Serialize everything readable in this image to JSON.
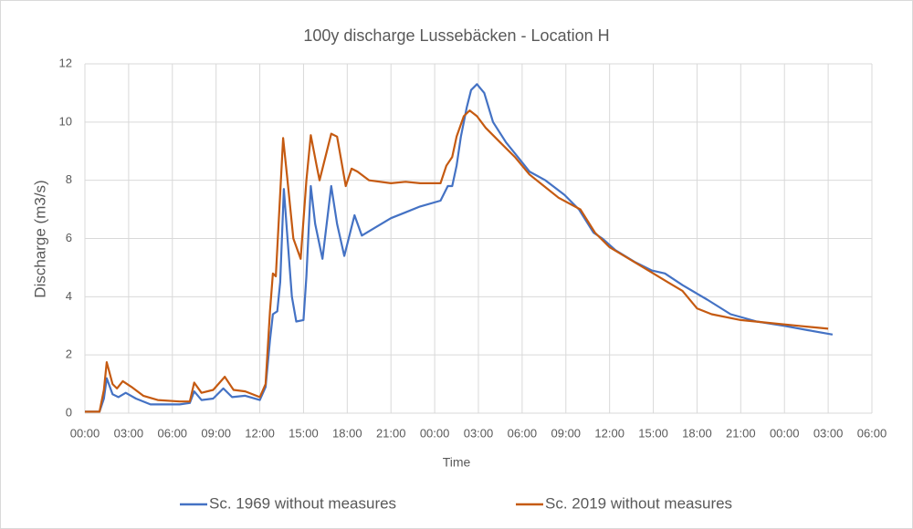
{
  "chart_data": {
    "type": "line",
    "title": "100y discharge Lussebäcken - Location H",
    "x_label": "Time",
    "y_label": "Discharge (m3/s)",
    "xlim": [
      0,
      54
    ],
    "xticks": [
      {
        "value": 0,
        "label": "00:00"
      },
      {
        "value": 3,
        "label": "03:00"
      },
      {
        "value": 6,
        "label": "06:00"
      },
      {
        "value": 9,
        "label": "09:00"
      },
      {
        "value": 12,
        "label": "12:00"
      },
      {
        "value": 15,
        "label": "15:00"
      },
      {
        "value": 18,
        "label": "18:00"
      },
      {
        "value": 21,
        "label": "21:00"
      },
      {
        "value": 24,
        "label": "00:00"
      },
      {
        "value": 27,
        "label": "03:00"
      },
      {
        "value": 30,
        "label": "06:00"
      },
      {
        "value": 33,
        "label": "09:00"
      },
      {
        "value": 36,
        "label": "12:00"
      },
      {
        "value": 39,
        "label": "15:00"
      },
      {
        "value": 42,
        "label": "18:00"
      },
      {
        "value": 45,
        "label": "21:00"
      },
      {
        "value": 48,
        "label": "00:00"
      },
      {
        "value": 51,
        "label": "03:00"
      },
      {
        "value": 54,
        "label": "06:00"
      }
    ],
    "ylim": [
      0,
      12
    ],
    "yticks": [
      0,
      2,
      4,
      6,
      8,
      10,
      12
    ],
    "grid": true,
    "legend": "bottom",
    "series": [
      {
        "name": "Sc. 1969 without measures",
        "color": "#4472c4",
        "x": [
          0,
          1.0,
          1.3,
          1.5,
          1.9,
          2.3,
          2.8,
          3.5,
          4.5,
          6.5,
          7.2,
          7.5,
          8.0,
          8.8,
          9.5,
          10.1,
          11,
          12,
          12.4,
          12.7,
          12.9,
          13.2,
          13.4,
          13.65,
          13.9,
          14.2,
          14.5,
          15.0,
          15.2,
          15.5,
          15.8,
          16.3,
          16.9,
          17.3,
          17.8,
          18.1,
          18.5,
          19.0,
          20,
          21,
          22,
          23,
          24.4,
          24.9,
          25.2,
          25.5,
          25.8,
          26.2,
          26.5,
          26.9,
          27.4,
          28.0,
          28.9,
          29.7,
          30.5,
          31.6,
          32.9,
          33.9,
          34.9,
          35.5,
          36.4,
          37.7,
          38.9,
          39.8,
          41.0,
          42.7,
          44.3,
          46.1,
          48.0,
          49.6,
          51.3
        ],
        "values": [
          0.05,
          0.05,
          0.5,
          1.2,
          0.65,
          0.55,
          0.7,
          0.5,
          0.3,
          0.3,
          0.35,
          0.75,
          0.45,
          0.5,
          0.85,
          0.55,
          0.6,
          0.45,
          0.9,
          2.5,
          3.4,
          3.5,
          4.5,
          7.7,
          6.0,
          4.0,
          3.15,
          3.2,
          4.7,
          7.8,
          6.5,
          5.3,
          7.8,
          6.5,
          5.4,
          6.0,
          6.8,
          6.1,
          6.4,
          6.7,
          6.9,
          7.1,
          7.3,
          7.8,
          7.8,
          8.5,
          9.5,
          10.5,
          11.1,
          11.3,
          11.0,
          10.0,
          9.3,
          8.8,
          8.3,
          8.0,
          7.5,
          7.0,
          6.2,
          6.0,
          5.6,
          5.2,
          4.9,
          4.8,
          4.4,
          3.9,
          3.4,
          3.15,
          3.0,
          2.85,
          2.7
        ]
      },
      {
        "name": "Sc. 2019 without measures",
        "color": "#c55a11",
        "x": [
          0,
          1.0,
          1.3,
          1.5,
          1.9,
          2.2,
          2.6,
          3.2,
          4,
          5,
          6.5,
          7.2,
          7.5,
          8.0,
          8.8,
          9.6,
          10.2,
          11,
          12,
          12.4,
          12.7,
          12.9,
          13.1,
          13.6,
          13.9,
          14.3,
          14.8,
          15.2,
          15.5,
          15.9,
          16.1,
          16.6,
          16.9,
          17.3,
          17.9,
          18.3,
          18.7,
          19.5,
          21,
          22,
          23,
          24.4,
          24.8,
          25.2,
          25.5,
          26,
          26.4,
          26.9,
          27.5,
          28.5,
          29.5,
          30.5,
          31.5,
          32.5,
          34,
          35,
          36,
          37,
          38,
          39,
          40,
          41,
          42,
          43,
          45,
          47,
          49,
          51
        ],
        "values": [
          0.05,
          0.05,
          0.8,
          1.75,
          1.0,
          0.85,
          1.1,
          0.9,
          0.6,
          0.45,
          0.4,
          0.4,
          1.05,
          0.7,
          0.8,
          1.25,
          0.8,
          0.75,
          0.55,
          1.0,
          3.5,
          4.8,
          4.7,
          9.45,
          8.0,
          6.0,
          5.3,
          8.0,
          9.55,
          8.5,
          8.0,
          9.0,
          9.6,
          9.5,
          7.8,
          8.4,
          8.3,
          8.0,
          7.9,
          7.95,
          7.9,
          7.9,
          8.5,
          8.8,
          9.5,
          10.2,
          10.4,
          10.2,
          9.8,
          9.3,
          8.8,
          8.2,
          7.8,
          7.4,
          7.0,
          6.2,
          5.7,
          5.4,
          5.1,
          4.8,
          4.5,
          4.2,
          3.6,
          3.4,
          3.2,
          3.1,
          3.0,
          2.9
        ]
      }
    ]
  }
}
